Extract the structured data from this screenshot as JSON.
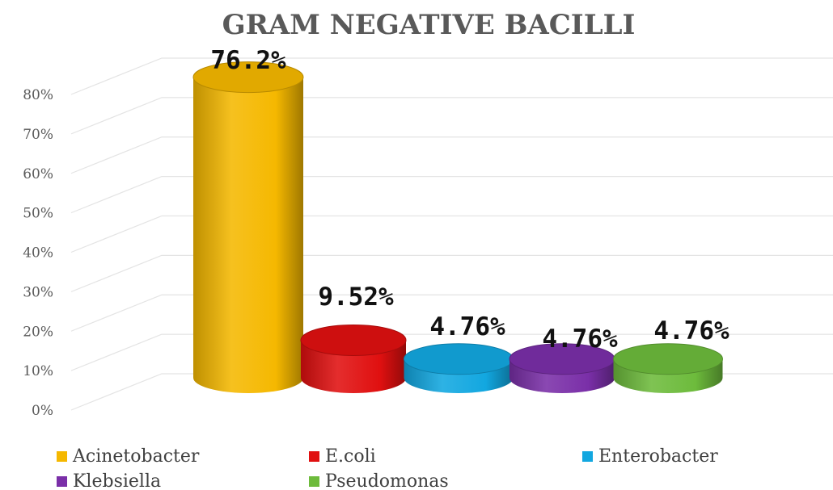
{
  "chart_data": {
    "type": "bar",
    "title": "GRAM NEGATIVE BACILLI",
    "categories": [
      "Acinetobacter",
      "E.coli",
      "Enterobacter",
      "Klebsiella",
      "Pseudomonas"
    ],
    "values": [
      76.2,
      9.52,
      4.76,
      4.76,
      4.76
    ],
    "data_labels": [
      "76.2%",
      "9.52%",
      "4.76%",
      "4.76%",
      "4.76%"
    ],
    "colors": [
      "#f5b800",
      "#e01010",
      "#12a7e0",
      "#7a2fa8",
      "#6dbb3c"
    ],
    "y_ticks": [
      "0%",
      "10%",
      "20%",
      "30%",
      "40%",
      "50%",
      "60%",
      "70%",
      "80%"
    ],
    "ylim": [
      0,
      80
    ],
    "grid": true,
    "legend_position": "bottom",
    "style": "3d-cylinder"
  }
}
